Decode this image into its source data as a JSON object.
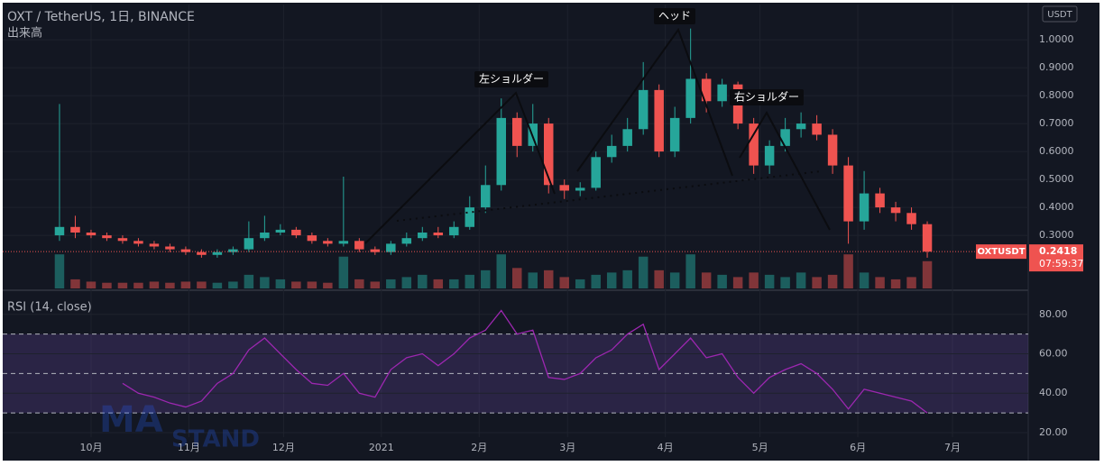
{
  "chart_data": {
    "type": "candlestick",
    "title": "OXT / TetherUS, 1日, BINANCE",
    "volume_label": "出来高",
    "currency": "USDT",
    "symbol": "OXTUSDT",
    "last_price": 0.2418,
    "countdown": "07:59:37",
    "annotations": [
      "左ショルダー",
      "ヘッド",
      "右ショルダー"
    ],
    "watermark": [
      "MA",
      "STAND"
    ],
    "up_color": "#26a69a",
    "down_color": "#ef5350",
    "x": [
      -10,
      -5,
      0,
      5,
      10,
      15,
      20,
      25,
      30,
      35,
      40,
      45,
      50,
      55,
      60,
      65,
      70,
      75,
      80,
      85,
      90,
      95,
      100,
      105,
      110,
      115,
      120,
      125,
      130,
      135,
      140,
      145,
      150,
      155,
      160,
      165,
      170,
      175,
      180,
      185,
      190,
      195,
      200,
      205,
      210,
      215,
      220,
      225,
      230,
      235,
      240,
      245,
      250,
      255,
      260,
      265
    ],
    "open": [
      0.3,
      0.33,
      0.31,
      0.3,
      0.29,
      0.28,
      0.27,
      0.26,
      0.25,
      0.24,
      0.23,
      0.24,
      0.25,
      0.29,
      0.31,
      0.32,
      0.3,
      0.28,
      0.27,
      0.28,
      0.25,
      0.24,
      0.27,
      0.29,
      0.31,
      0.3,
      0.33,
      0.4,
      0.48,
      0.72,
      0.62,
      0.7,
      0.48,
      0.46,
      0.47,
      0.58,
      0.62,
      0.68,
      0.82,
      0.6,
      0.72,
      0.86,
      0.78,
      0.84,
      0.7,
      0.55,
      0.62,
      0.68,
      0.7,
      0.66,
      0.55,
      0.35,
      0.45,
      0.4,
      0.38,
      0.34
    ],
    "high": [
      0.77,
      0.37,
      0.32,
      0.31,
      0.3,
      0.29,
      0.28,
      0.27,
      0.26,
      0.25,
      0.25,
      0.26,
      0.35,
      0.37,
      0.34,
      0.33,
      0.31,
      0.29,
      0.51,
      0.29,
      0.26,
      0.28,
      0.31,
      0.33,
      0.33,
      0.35,
      0.44,
      0.55,
      0.79,
      0.74,
      0.77,
      0.72,
      0.5,
      0.49,
      0.6,
      0.66,
      0.72,
      0.92,
      0.84,
      0.76,
      1.04,
      0.88,
      0.86,
      0.85,
      0.72,
      0.64,
      0.72,
      0.74,
      0.73,
      0.68,
      0.58,
      0.53,
      0.47,
      0.42,
      0.4,
      0.35
    ],
    "low": [
      0.28,
      0.29,
      0.29,
      0.28,
      0.27,
      0.26,
      0.25,
      0.24,
      0.23,
      0.22,
      0.22,
      0.23,
      0.24,
      0.28,
      0.3,
      0.29,
      0.27,
      0.26,
      0.26,
      0.24,
      0.23,
      0.23,
      0.26,
      0.28,
      0.29,
      0.29,
      0.32,
      0.38,
      0.46,
      0.58,
      0.6,
      0.45,
      0.43,
      0.44,
      0.46,
      0.56,
      0.6,
      0.66,
      0.58,
      0.58,
      0.7,
      0.74,
      0.76,
      0.68,
      0.52,
      0.52,
      0.6,
      0.65,
      0.64,
      0.52,
      0.27,
      0.32,
      0.38,
      0.35,
      0.32,
      0.22
    ],
    "close": [
      0.33,
      0.31,
      0.3,
      0.29,
      0.28,
      0.27,
      0.26,
      0.25,
      0.24,
      0.23,
      0.24,
      0.25,
      0.29,
      0.31,
      0.32,
      0.3,
      0.28,
      0.27,
      0.28,
      0.25,
      0.24,
      0.27,
      0.29,
      0.31,
      0.3,
      0.33,
      0.4,
      0.48,
      0.72,
      0.62,
      0.7,
      0.48,
      0.46,
      0.47,
      0.58,
      0.62,
      0.68,
      0.82,
      0.6,
      0.72,
      0.86,
      0.78,
      0.84,
      0.7,
      0.55,
      0.62,
      0.68,
      0.7,
      0.66,
      0.55,
      0.35,
      0.45,
      0.4,
      0.38,
      0.34,
      0.2418
    ],
    "volume": [
      30,
      8,
      6,
      5,
      5,
      5,
      6,
      5,
      6,
      6,
      5,
      6,
      12,
      10,
      8,
      6,
      6,
      5,
      28,
      8,
      6,
      8,
      10,
      12,
      8,
      8,
      12,
      16,
      30,
      18,
      14,
      16,
      10,
      8,
      12,
      14,
      16,
      28,
      16,
      14,
      30,
      14,
      12,
      10,
      14,
      12,
      10,
      14,
      10,
      12,
      30,
      14,
      10,
      8,
      10,
      24
    ],
    "vlim": [
      0,
      250
    ],
    "xlim": [
      -28,
      297
    ],
    "xticks": [
      {
        "value": 0,
        "label": "10月"
      },
      {
        "value": 31,
        "label": "11月"
      },
      {
        "value": 61,
        "label": "12月"
      },
      {
        "value": 92,
        "label": "2021"
      },
      {
        "value": 123,
        "label": "2月"
      },
      {
        "value": 151,
        "label": "3月"
      },
      {
        "value": 182,
        "label": "4月"
      },
      {
        "value": 212,
        "label": "5月"
      },
      {
        "value": 243,
        "label": "6月"
      },
      {
        "value": 273,
        "label": "7月"
      }
    ],
    "ylim": [
      0.11,
      1.126
    ],
    "yticks": [
      {
        "value": 0.3,
        "label": "0.3000"
      },
      {
        "value": 0.4,
        "label": "0.4000"
      },
      {
        "value": 0.5,
        "label": "0.5000"
      },
      {
        "value": 0.6,
        "label": "0.6000"
      },
      {
        "value": 0.7,
        "label": "0.7000"
      },
      {
        "value": 0.8,
        "label": "0.8000"
      },
      {
        "value": 0.9,
        "label": "0.9000"
      },
      {
        "value": 1,
        "label": "1.0000"
      }
    ],
    "rsi": {
      "label": "RSI (14, close)",
      "color": "#9c27b0",
      "values": [
        null,
        null,
        null,
        null,
        45,
        40,
        38,
        35,
        33,
        36,
        45,
        50,
        62,
        68,
        60,
        52,
        45,
        44,
        50,
        40,
        38,
        52,
        58,
        60,
        54,
        60,
        68,
        72,
        82,
        70,
        72,
        48,
        47,
        50,
        58,
        62,
        70,
        75,
        52,
        60,
        68,
        58,
        60,
        48,
        40,
        48,
        52,
        55,
        50,
        42,
        32,
        42,
        40,
        38,
        36,
        30
      ],
      "ylim": [
        17.7,
        88.6
      ],
      "yticks": [
        {
          "value": 20,
          "label": "20.00"
        },
        {
          "value": 40,
          "label": "40.00"
        },
        {
          "value": 60,
          "label": "60.00"
        },
        {
          "value": 80,
          "label": "80.00"
        }
      ],
      "levels": [
        30,
        50,
        70
      ]
    }
  }
}
